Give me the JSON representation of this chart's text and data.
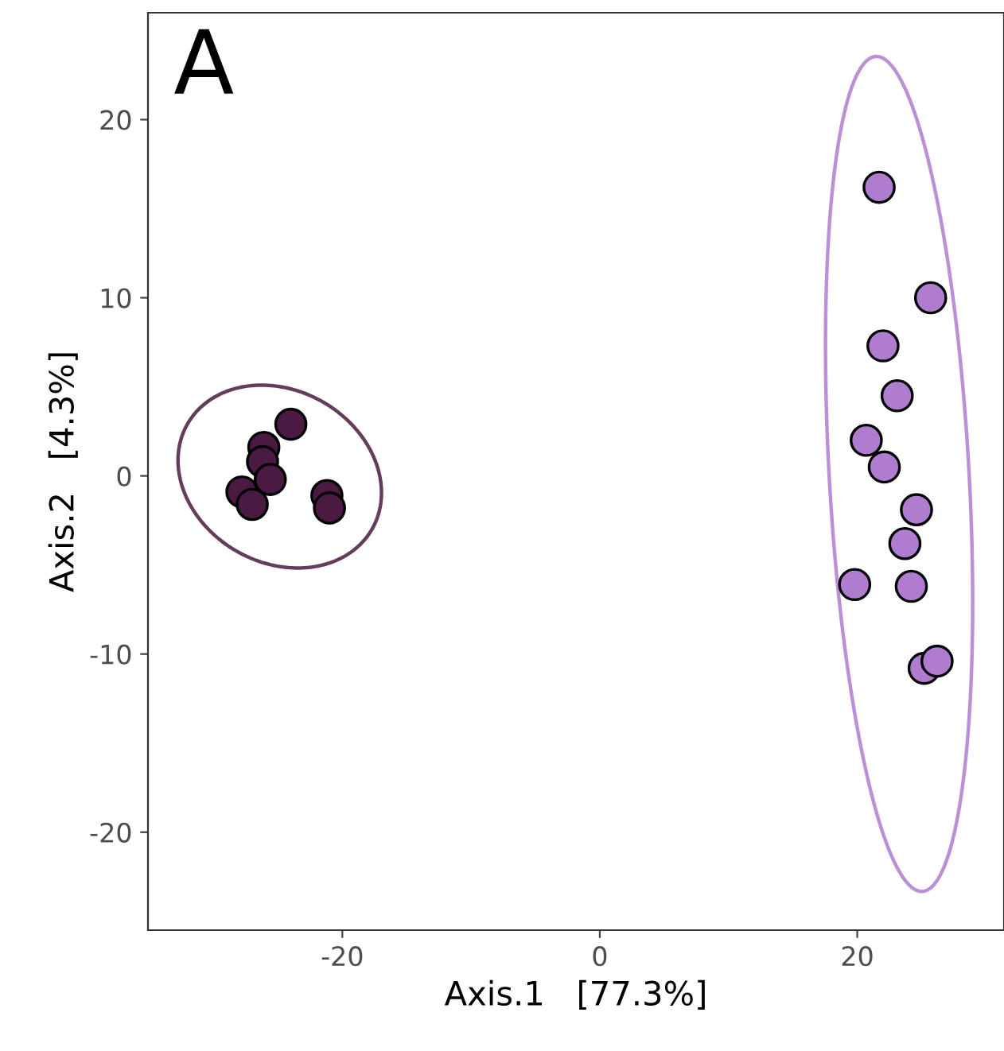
{
  "chart_data": {
    "type": "scatter",
    "title": "A",
    "xlabel": "Axis.1   [77.3%]",
    "ylabel": "Axis.2   [4.3%]",
    "xlim": [
      -35.1,
      31.4
    ],
    "ylim": [
      -25.5,
      26.0
    ],
    "xticks": [
      -20,
      0,
      20
    ],
    "yticks": [
      -20,
      -10,
      0,
      10,
      20
    ],
    "grid": false,
    "legend": false,
    "marker": "circle",
    "series": [
      {
        "color": "#4a1a42",
        "x": [
          -24.0,
          -26.1,
          -26.2,
          -25.6,
          -27.8,
          -27.0,
          -21.2,
          -21.0
        ],
        "values": [
          2.9,
          1.6,
          0.8,
          -0.2,
          -0.9,
          -1.6,
          -1.1,
          -1.8
        ]
      },
      {
        "color": "#b07cd0",
        "x": [
          21.7,
          25.7,
          22.0,
          23.1,
          20.7,
          22.1,
          24.6,
          23.7,
          24.2,
          19.8,
          25.2,
          26.2
        ],
        "values": [
          16.2,
          10.0,
          7.3,
          4.5,
          2.0,
          0.5,
          -1.9,
          -3.8,
          -6.2,
          -6.1,
          -10.8,
          -10.4
        ]
      }
    ]
  }
}
